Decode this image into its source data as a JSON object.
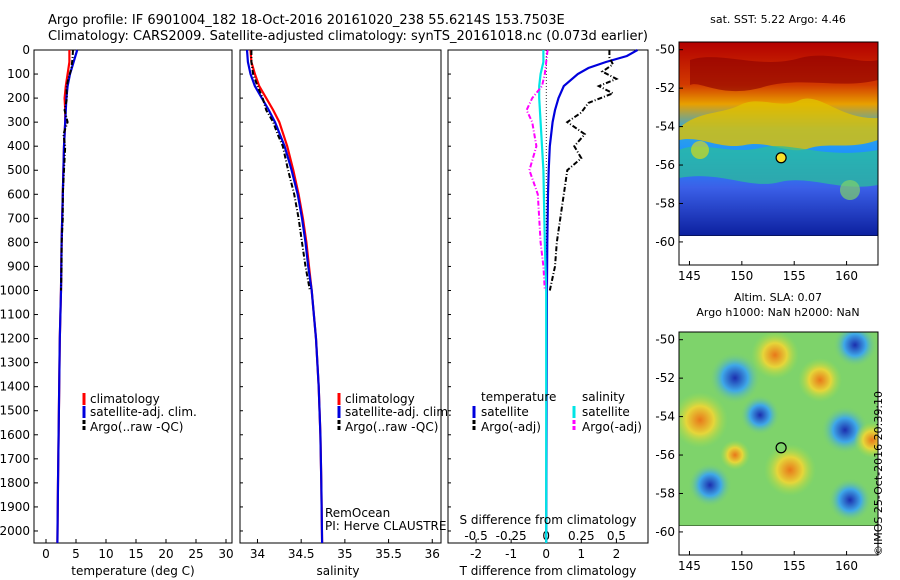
{
  "title_line1": "Argo profile: IF 6901004_182 18-Oct-2016 20161020_238 55.6214S 153.7503E",
  "title_line2": "Climatology: CARS2009. Satellite-adjusted climatology: synTS_20161018.nc (0.073d earlier)",
  "credit": "©IMOS 25-Oct-2016 20:39:10",
  "colors": {
    "climatology": "#ff0000",
    "satellite": "#0000dd",
    "argo": "#000000",
    "sal_satellite": "#00e5e5",
    "sal_argo": "#ff00ff"
  },
  "chart_data": [
    {
      "type": "line",
      "id": "temperature",
      "xlabel": "temperature (deg C)",
      "xlim": [
        -2,
        31
      ],
      "xticks": [
        0,
        5,
        10,
        15,
        20,
        25,
        30
      ],
      "ylim": [
        2050,
        0
      ],
      "yticks": [
        0,
        100,
        200,
        300,
        400,
        500,
        600,
        700,
        800,
        900,
        1000,
        1100,
        1200,
        1300,
        1400,
        1500,
        1600,
        1700,
        1800,
        1900,
        2000
      ],
      "legend": [
        "climatology",
        "satellite-adj. clim.",
        "Argo(..raw -QC)"
      ],
      "series": [
        {
          "name": "climatology",
          "depth": [
            0,
            50,
            100,
            150,
            200,
            250,
            300,
            400,
            500,
            600,
            800,
            1000,
            1200,
            1400,
            1600,
            1800,
            2050
          ],
          "values": [
            3.9,
            3.9,
            3.6,
            3.3,
            3.1,
            3.2,
            3.2,
            3.0,
            2.9,
            2.8,
            2.6,
            2.5,
            2.3,
            2.2,
            2.1,
            2.0,
            1.9
          ]
        },
        {
          "name": "satellite-adj. clim.",
          "depth": [
            0,
            50,
            100,
            150,
            200,
            250,
            300,
            400,
            500,
            600,
            800,
            1000,
            1200,
            1400,
            1600,
            1800,
            2050
          ],
          "values": [
            5.2,
            4.6,
            4.0,
            3.6,
            3.4,
            3.3,
            3.2,
            3.0,
            2.9,
            2.8,
            2.6,
            2.5,
            2.3,
            2.2,
            2.1,
            2.0,
            1.9
          ]
        },
        {
          "name": "Argo(..raw -QC)",
          "depth": [
            0,
            40,
            80,
            120,
            160,
            200,
            250,
            300,
            350,
            400,
            500,
            600,
            700,
            800,
            900,
            1000
          ],
          "values": [
            4.5,
            4.4,
            4.2,
            3.7,
            3.4,
            3.5,
            3.1,
            3.6,
            2.9,
            3.2,
            3.0,
            2.8,
            2.8,
            2.6,
            2.6,
            2.5
          ]
        }
      ]
    },
    {
      "type": "line",
      "id": "salinity",
      "xlabel": "salinity",
      "xlim": [
        33.8,
        36.1
      ],
      "xticks": [
        34,
        34.5,
        35,
        35.5,
        36
      ],
      "ylim": [
        2050,
        0
      ],
      "legend": [
        "climatology",
        "satellite-adj. clim.",
        "Argo(..raw -QC)"
      ],
      "annotation": [
        "RemOcean",
        "PI: Herve CLAUSTRE"
      ],
      "series": [
        {
          "name": "climatology",
          "depth": [
            0,
            50,
            100,
            150,
            200,
            250,
            300,
            400,
            500,
            600,
            700,
            800,
            900,
            1000,
            1200,
            1400,
            1600,
            1800,
            2050
          ],
          "values": [
            33.92,
            33.93,
            33.97,
            34.02,
            34.1,
            34.18,
            34.25,
            34.34,
            34.41,
            34.47,
            34.52,
            34.56,
            34.59,
            34.62,
            34.67,
            34.7,
            34.72,
            34.73,
            34.74
          ]
        },
        {
          "name": "satellite-adj. clim.",
          "depth": [
            0,
            50,
            100,
            150,
            200,
            250,
            300,
            400,
            500,
            600,
            700,
            800,
            900,
            1000,
            1200,
            1400,
            1600,
            1800,
            2050
          ],
          "values": [
            33.88,
            33.89,
            33.92,
            33.97,
            34.05,
            34.13,
            34.2,
            34.31,
            34.39,
            34.46,
            34.51,
            34.55,
            34.58,
            34.62,
            34.67,
            34.7,
            34.72,
            34.73,
            34.74
          ]
        },
        {
          "name": "Argo(..raw -QC)",
          "depth": [
            0,
            50,
            100,
            150,
            200,
            250,
            300,
            350,
            400,
            500,
            600,
            700,
            800,
            900,
            1000
          ],
          "values": [
            33.93,
            33.93,
            33.95,
            34.0,
            34.06,
            34.1,
            34.18,
            34.23,
            34.29,
            34.35,
            34.42,
            34.47,
            34.51,
            34.55,
            34.6
          ]
        }
      ]
    },
    {
      "type": "line",
      "id": "difference",
      "xlabel": "T difference from climatology",
      "xlabel_top": "S difference from climatology",
      "xlim": [
        -2.8,
        2.9
      ],
      "xticks": [
        -2,
        -1,
        0,
        1,
        2
      ],
      "xticks_s": [
        -0.5,
        -0.25,
        0,
        0.25,
        0.5
      ],
      "ylim": [
        2050,
        0
      ],
      "legend_temperature_title": "temperature",
      "legend_salinity_title": "salinity",
      "legend_temperature": [
        "satellite",
        "Argo(-adj)"
      ],
      "legend_salinity": [
        "satellite",
        "Argo(-adj)"
      ],
      "series": [
        {
          "name": "T satellite",
          "depth": [
            0,
            25,
            50,
            75,
            100,
            150,
            200,
            250,
            300,
            400,
            500,
            600,
            800,
            1000,
            1500,
            2050
          ],
          "values": [
            2.6,
            2.3,
            1.7,
            1.2,
            0.9,
            0.5,
            0.35,
            0.25,
            0.18,
            0.1,
            0.07,
            0.05,
            0.03,
            0.02,
            0.01,
            0.0
          ]
        },
        {
          "name": "T Argo(-adj)",
          "depth": [
            0,
            30,
            60,
            90,
            120,
            150,
            180,
            220,
            260,
            300,
            350,
            400,
            450,
            500,
            600,
            700,
            800,
            900,
            1000
          ],
          "values": [
            1.8,
            1.8,
            1.9,
            1.6,
            2.0,
            1.5,
            1.9,
            1.2,
            1.0,
            0.6,
            1.1,
            0.8,
            1.0,
            0.6,
            0.5,
            0.4,
            0.3,
            0.25,
            0.1
          ]
        },
        {
          "name": "S satellite",
          "depth": [
            0,
            50,
            100,
            150,
            200,
            300,
            500,
            800,
            1000,
            1500,
            2050
          ],
          "values": [
            -0.02,
            -0.02,
            -0.04,
            -0.05,
            -0.05,
            -0.04,
            -0.02,
            -0.01,
            0.0,
            0.0,
            0.0
          ]
        },
        {
          "name": "S Argo(-adj)",
          "depth": [
            0,
            50,
            100,
            150,
            200,
            250,
            300,
            400,
            500,
            600,
            700,
            800,
            900,
            1000
          ],
          "values": [
            0.01,
            0.0,
            -0.01,
            -0.03,
            -0.1,
            -0.14,
            -0.1,
            -0.07,
            -0.12,
            -0.06,
            -0.05,
            -0.04,
            -0.02,
            -0.01
          ]
        }
      ]
    },
    {
      "type": "heatmap",
      "id": "sst_map",
      "title": "sat. SST: 5.22 Argo: 4.46",
      "xlim": [
        144,
        163
      ],
      "ylim": [
        -61.2,
        -49.6
      ],
      "xticks": [
        145,
        150,
        155,
        160
      ],
      "yticks": [
        -50,
        -52,
        -54,
        -56,
        -58,
        -60
      ],
      "data_extent_lat": [
        -60,
        -49.6
      ],
      "float_position": {
        "lon": 153.75,
        "lat": -55.62
      }
    },
    {
      "type": "heatmap",
      "id": "sla_map",
      "title_line1": "Altim. SLA: 0.07",
      "title_line2": "Argo h1000: NaN h2000: NaN",
      "xlim": [
        144,
        163
      ],
      "ylim": [
        -61.2,
        -49.6
      ],
      "xticks": [
        145,
        150,
        155,
        160
      ],
      "yticks": [
        -50,
        -52,
        -54,
        -56,
        -58,
        -60
      ],
      "data_extent_lat": [
        -60,
        -49.6
      ],
      "float_position": {
        "lon": 153.75,
        "lat": -55.62
      }
    }
  ]
}
